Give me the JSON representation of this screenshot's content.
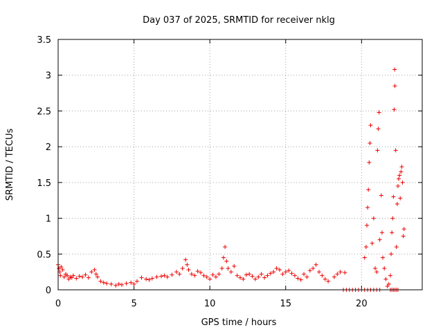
{
  "chart_data": {
    "type": "scatter",
    "title": "Day 037 of 2025, SRMTID for receiver nklg",
    "xlabel": "GPS time / hours",
    "ylabel": "SRMTID / TECUs",
    "xlim": [
      0,
      24
    ],
    "ylim": [
      0,
      3.5
    ],
    "xticks": [
      0,
      5,
      10,
      15,
      20
    ],
    "xtick_labels": [
      "0",
      "5",
      "10",
      "15",
      "20"
    ],
    "yticks": [
      0,
      0.5,
      1,
      1.5,
      2,
      2.5,
      3,
      3.5
    ],
    "ytick_labels": [
      "0",
      "0.5",
      "1",
      "1.5",
      "2",
      "2.5",
      "3",
      "3.5"
    ],
    "grid": true,
    "marker": "+",
    "color": "#ee0000",
    "series": [
      {
        "name": "SRMTID",
        "points": [
          [
            0.0,
            0.35
          ],
          [
            0.05,
            0.3
          ],
          [
            0.1,
            0.25
          ],
          [
            0.15,
            0.2
          ],
          [
            0.2,
            0.32
          ],
          [
            0.3,
            0.28
          ],
          [
            0.4,
            0.18
          ],
          [
            0.5,
            0.22
          ],
          [
            0.6,
            0.2
          ],
          [
            0.7,
            0.15
          ],
          [
            0.8,
            0.18
          ],
          [
            0.9,
            0.17
          ],
          [
            1.0,
            0.2
          ],
          [
            1.2,
            0.16
          ],
          [
            1.4,
            0.19
          ],
          [
            1.6,
            0.18
          ],
          [
            1.8,
            0.21
          ],
          [
            2.0,
            0.17
          ],
          [
            2.2,
            0.25
          ],
          [
            2.4,
            0.28
          ],
          [
            2.5,
            0.22
          ],
          [
            2.6,
            0.18
          ],
          [
            2.8,
            0.12
          ],
          [
            3.0,
            0.1
          ],
          [
            3.2,
            0.09
          ],
          [
            3.5,
            0.08
          ],
          [
            3.8,
            0.06
          ],
          [
            4.0,
            0.08
          ],
          [
            4.2,
            0.07
          ],
          [
            4.5,
            0.09
          ],
          [
            4.8,
            0.1
          ],
          [
            5.0,
            0.08
          ],
          [
            5.2,
            0.12
          ],
          [
            5.5,
            0.17
          ],
          [
            5.8,
            0.15
          ],
          [
            6.0,
            0.14
          ],
          [
            6.2,
            0.16
          ],
          [
            6.5,
            0.18
          ],
          [
            6.8,
            0.19
          ],
          [
            7.0,
            0.2
          ],
          [
            7.2,
            0.18
          ],
          [
            7.5,
            0.21
          ],
          [
            7.8,
            0.25
          ],
          [
            8.0,
            0.22
          ],
          [
            8.2,
            0.3
          ],
          [
            8.4,
            0.42
          ],
          [
            8.5,
            0.35
          ],
          [
            8.6,
            0.28
          ],
          [
            8.8,
            0.22
          ],
          [
            9.0,
            0.2
          ],
          [
            9.2,
            0.26
          ],
          [
            9.4,
            0.24
          ],
          [
            9.6,
            0.2
          ],
          [
            9.8,
            0.18
          ],
          [
            10.0,
            0.15
          ],
          [
            10.2,
            0.21
          ],
          [
            10.4,
            0.18
          ],
          [
            10.6,
            0.22
          ],
          [
            10.8,
            0.3
          ],
          [
            10.9,
            0.45
          ],
          [
            11.0,
            0.6
          ],
          [
            11.1,
            0.4
          ],
          [
            11.2,
            0.3
          ],
          [
            11.4,
            0.25
          ],
          [
            11.6,
            0.33
          ],
          [
            11.8,
            0.2
          ],
          [
            12.0,
            0.17
          ],
          [
            12.2,
            0.15
          ],
          [
            12.4,
            0.21
          ],
          [
            12.6,
            0.22
          ],
          [
            12.8,
            0.19
          ],
          [
            13.0,
            0.15
          ],
          [
            13.2,
            0.18
          ],
          [
            13.4,
            0.22
          ],
          [
            13.6,
            0.17
          ],
          [
            13.8,
            0.2
          ],
          [
            14.0,
            0.23
          ],
          [
            14.2,
            0.25
          ],
          [
            14.4,
            0.3
          ],
          [
            14.6,
            0.28
          ],
          [
            14.8,
            0.22
          ],
          [
            15.0,
            0.25
          ],
          [
            15.2,
            0.27
          ],
          [
            15.4,
            0.23
          ],
          [
            15.6,
            0.2
          ],
          [
            15.8,
            0.16
          ],
          [
            16.0,
            0.14
          ],
          [
            16.2,
            0.22
          ],
          [
            16.4,
            0.18
          ],
          [
            16.6,
            0.27
          ],
          [
            16.8,
            0.3
          ],
          [
            17.0,
            0.35
          ],
          [
            17.2,
            0.25
          ],
          [
            17.4,
            0.2
          ],
          [
            17.6,
            0.15
          ],
          [
            17.8,
            0.12
          ],
          [
            18.2,
            0.18
          ],
          [
            18.4,
            0.22
          ],
          [
            18.6,
            0.25
          ],
          [
            18.9,
            0.24
          ],
          [
            20.2,
            0.45
          ],
          [
            20.3,
            0.6
          ],
          [
            20.35,
            0.9
          ],
          [
            20.4,
            1.15
          ],
          [
            20.45,
            1.4
          ],
          [
            20.5,
            1.78
          ],
          [
            20.55,
            2.05
          ],
          [
            20.6,
            2.3
          ],
          [
            20.7,
            0.65
          ],
          [
            20.8,
            1.0
          ],
          [
            20.9,
            0.3
          ],
          [
            21.0,
            0.25
          ],
          [
            21.05,
            1.95
          ],
          [
            21.1,
            2.25
          ],
          [
            21.15,
            2.48
          ],
          [
            21.2,
            0.7
          ],
          [
            21.3,
            1.32
          ],
          [
            21.35,
            0.8
          ],
          [
            21.4,
            0.45
          ],
          [
            21.5,
            0.3
          ],
          [
            21.6,
            0.15
          ],
          [
            21.7,
            0.05
          ],
          [
            21.8,
            0.08
          ],
          [
            21.9,
            0.2
          ],
          [
            21.95,
            0.5
          ],
          [
            22.0,
            0.8
          ],
          [
            22.05,
            1.0
          ],
          [
            22.1,
            1.3
          ],
          [
            22.15,
            2.52
          ],
          [
            22.18,
            3.08
          ],
          [
            22.2,
            2.85
          ],
          [
            22.25,
            1.95
          ],
          [
            22.3,
            0.6
          ],
          [
            22.35,
            1.2
          ],
          [
            22.4,
            1.45
          ],
          [
            22.45,
            1.55
          ],
          [
            22.5,
            1.6
          ],
          [
            22.55,
            1.28
          ],
          [
            22.6,
            1.65
          ],
          [
            22.65,
            1.72
          ],
          [
            22.7,
            1.5
          ],
          [
            22.75,
            0.75
          ],
          [
            22.8,
            0.85
          ],
          [
            18.8,
            0.0
          ],
          [
            19.0,
            0.0
          ],
          [
            19.2,
            0.0
          ],
          [
            19.4,
            0.0
          ],
          [
            19.6,
            0.0
          ],
          [
            19.8,
            0.0
          ],
          [
            20.0,
            0.0
          ],
          [
            20.2,
            0.0
          ],
          [
            20.4,
            0.0
          ],
          [
            20.6,
            0.0
          ],
          [
            20.8,
            0.0
          ],
          [
            21.0,
            0.0
          ],
          [
            21.2,
            0.0
          ],
          [
            21.9,
            0.0
          ],
          [
            22.0,
            0.0
          ],
          [
            22.1,
            0.0
          ],
          [
            22.2,
            0.0
          ],
          [
            22.3,
            0.0
          ],
          [
            22.4,
            0.0
          ]
        ]
      }
    ]
  }
}
